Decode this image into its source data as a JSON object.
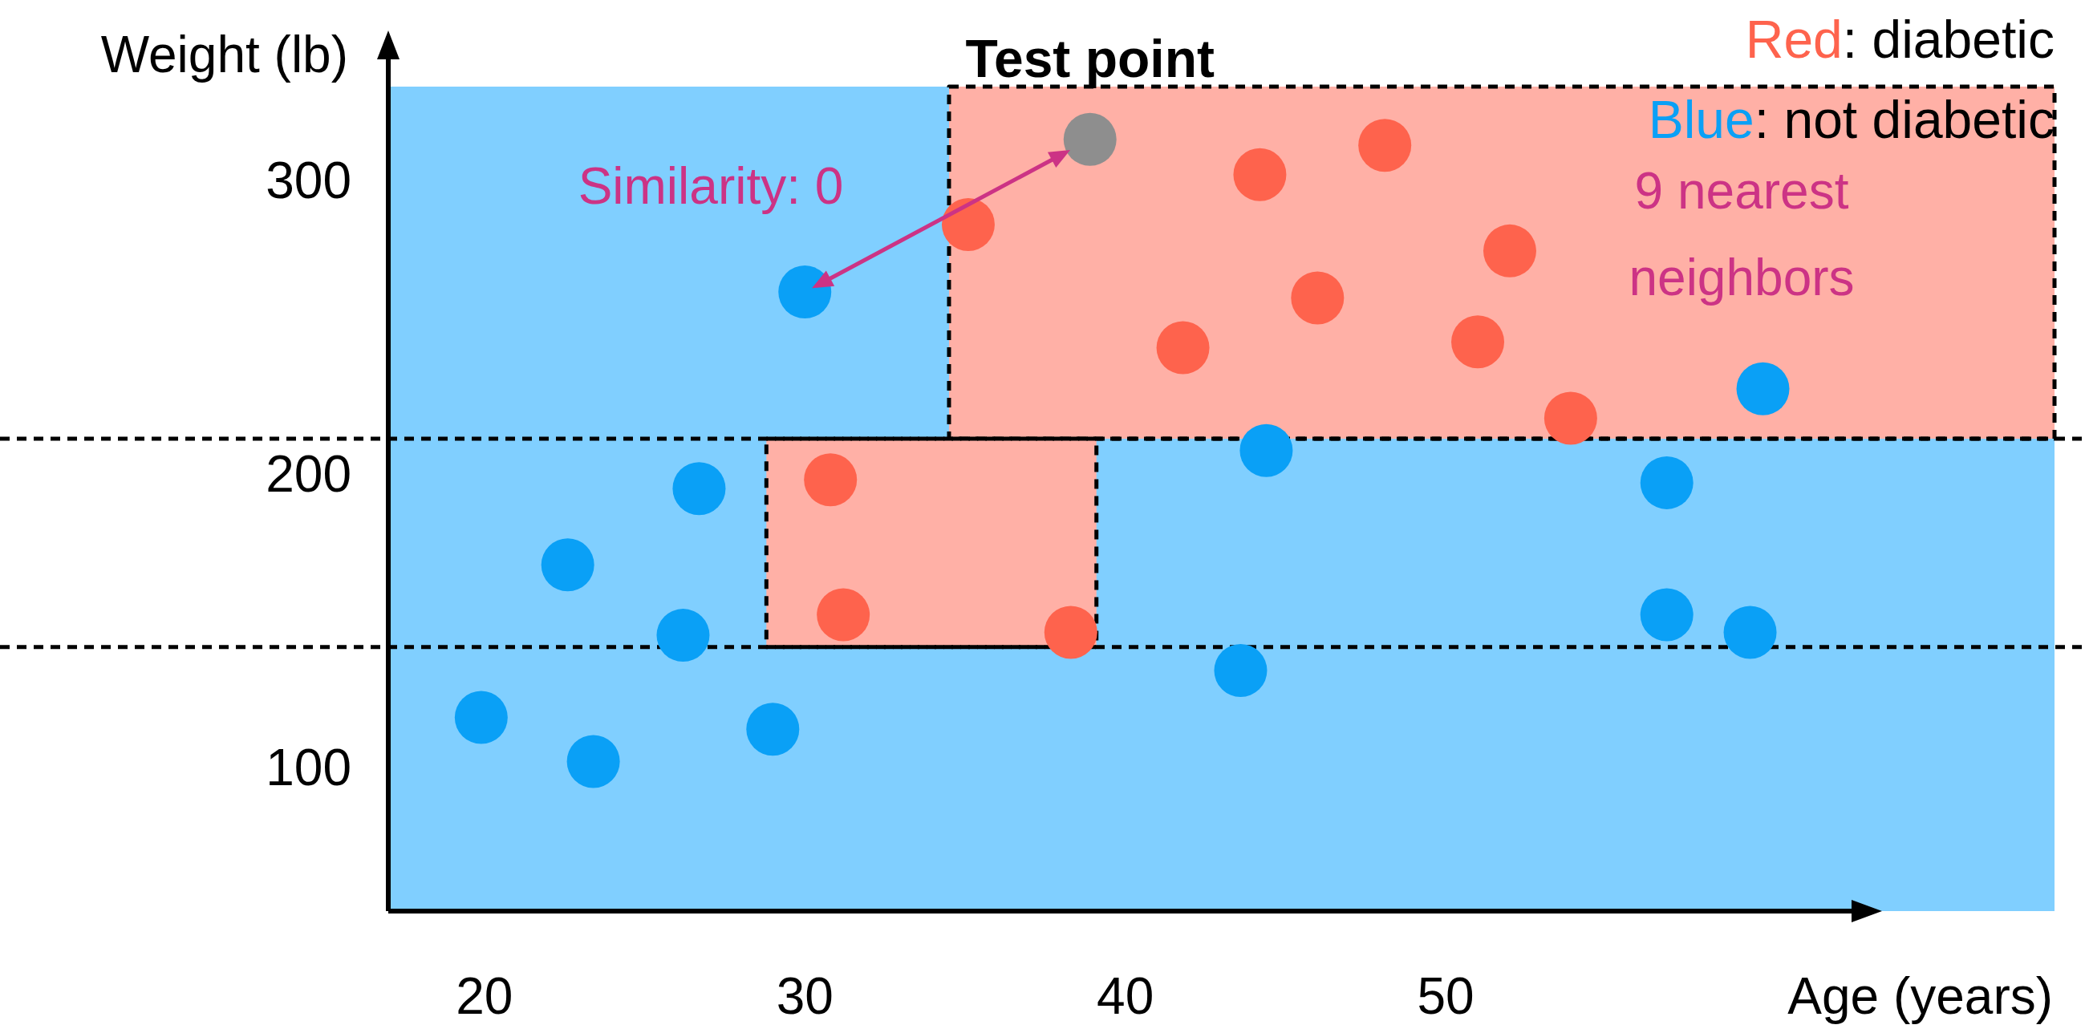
{
  "chart_data": {
    "type": "scatter",
    "xlabel": "Age (years)",
    "ylabel": "Weight (lb)",
    "xlim": [
      17,
      69
    ],
    "ylim": [
      51,
      332
    ],
    "xticks": [
      20,
      30,
      40,
      50
    ],
    "yticks": [
      100,
      200,
      300
    ],
    "legend": "top right",
    "marker": "circle",
    "series": [
      {
        "type": "area",
        "color": "#ffb0a6",
        "x": [
          34.5,
          69
        ],
        "values": [
          null,
          null
        ],
        "upper": [
          332,
          332
        ],
        "lower": [
          212,
          212
        ],
        "line_style": "dashed",
        "marker": "none"
      },
      {
        "type": "area",
        "color": "#ffb0a6",
        "x": [
          28.8,
          39.1
        ],
        "values": [
          null,
          null
        ],
        "upper": [
          212,
          212
        ],
        "lower": [
          141,
          141
        ],
        "line_style": "dashed",
        "marker": "none"
      },
      {
        "name": "Red: diabetic",
        "color": "#fe634d",
        "x": [
          35.1,
          44.2,
          48.1,
          52.0,
          46.0,
          41.8,
          51.0,
          53.9,
          30.8,
          31.2,
          38.3
        ],
        "values": [
          285,
          302,
          312,
          276,
          260,
          243,
          245,
          219,
          198,
          152,
          146
        ]
      },
      {
        "name": "Blue: not diabetic",
        "color": "#0aa0f6",
        "x": [
          30.0,
          19.9,
          22.6,
          23.4,
          26.2,
          26.7,
          29.0,
          43.6,
          44.4,
          59.9,
          56.9,
          56.9,
          59.5
        ],
        "values": [
          262,
          117,
          169,
          102,
          145,
          195,
          113,
          133,
          208,
          229,
          197,
          152,
          146
        ]
      },
      {
        "color": "#8e8e8e",
        "x": [
          38.9
        ],
        "values": [
          314
        ]
      }
    ],
    "ref_lines": [
      {
        "axis": "y",
        "value": 212,
        "color": "#000000",
        "line_style": "dashed"
      },
      {
        "axis": "y",
        "value": 141,
        "color": "#000000",
        "line_style": "dashed"
      }
    ],
    "annotations": [
      {
        "text": "Test point",
        "x": 38.9,
        "y": 314
      },
      {
        "text": "Similarity: 0",
        "x": 30.0,
        "y": 262
      },
      "9 nearest neighbors"
    ]
  }
}
